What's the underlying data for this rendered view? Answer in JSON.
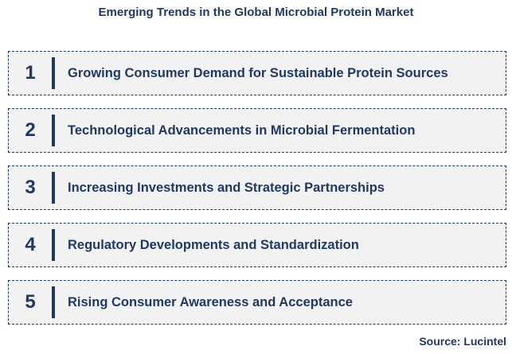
{
  "title": "Emerging Trends in the Global Microbial Protein Market",
  "trends": [
    {
      "number": "1",
      "label": "Growing Consumer Demand for Sustainable Protein Sources"
    },
    {
      "number": "2",
      "label": "Technological Advancements in Microbial Fermentation"
    },
    {
      "number": "3",
      "label": "Increasing Investments and Strategic Partnerships"
    },
    {
      "number": "4",
      "label": "Regulatory Developments and Standardization"
    },
    {
      "number": "5",
      "label": "Rising Consumer Awareness and Acceptance"
    }
  ],
  "source": "Source: Lucintel",
  "colors": {
    "accent": "#1F3864",
    "box_bg": "#F2F2F2",
    "border": "#1F3864"
  }
}
